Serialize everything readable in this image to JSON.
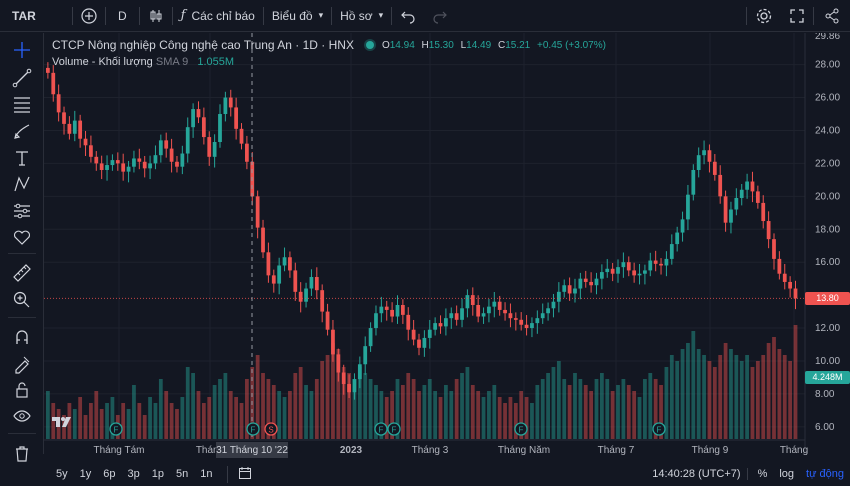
{
  "topbar": {
    "symbol": "TAR",
    "interval": "D",
    "indicators_label": "Các chỉ báo",
    "chart_type_label": "Biểu đồ",
    "profile_label": "Hồ sơ"
  },
  "legend": {
    "title": "CTCP Nông nghiệp Công nghệ cao Trung An · 1D · HNX",
    "o_label": "O",
    "o_value": "14.94",
    "h_label": "H",
    "h_value": "15.30",
    "l_label": "L",
    "l_value": "14.49",
    "c_label": "C",
    "c_value": "15.21",
    "change": "+0.45 (+3.07%)",
    "volume_label": "Volume - Khối lượng",
    "sma_label": "SMA 9",
    "volume_value": "1.055M"
  },
  "price_axis": {
    "ticks": [
      "28.00",
      "26.00",
      "24.00",
      "22.00",
      "20.00",
      "18.00",
      "16.00",
      "12.00",
      "10.00",
      "8.00",
      "6.00"
    ],
    "top_label": "29.86",
    "last_price": "13.80",
    "last_volume": "4.248M"
  },
  "time_axis": {
    "labels": [
      "Tháng Tám",
      "Tháng",
      "2023",
      "Tháng 3",
      "Tháng Năm",
      "Tháng 7",
      "Tháng 9",
      "Tháng"
    ],
    "crosshair_label": "31 Tháng 10 '22"
  },
  "bottombar": {
    "ranges": [
      "5y",
      "1y",
      "6p",
      "3p",
      "1p",
      "5n",
      "1n"
    ],
    "clock": "14:40:28 (UTC+7)",
    "percent": "%",
    "log": "log",
    "auto": "tự động"
  },
  "events": [
    "F",
    "F",
    "S",
    "F",
    "F",
    "F",
    "F"
  ],
  "colors": {
    "background": "#131722",
    "up": "#26a69a",
    "down": "#ef5350",
    "accent": "#2962ff"
  },
  "icons": {
    "leftbar": [
      "crosshair-icon",
      "trendline-icon",
      "fib-icon",
      "brush-icon",
      "text-icon",
      "pattern-icon",
      "forecast-icon",
      "heart-icon",
      "ruler-icon",
      "zoom-icon",
      "magnet-icon",
      "lock-draw-icon",
      "lock-icon",
      "eye-icon",
      "trash-icon"
    ]
  },
  "chart_data": {
    "type": "candlestick",
    "ylim": [
      5.2,
      29.86
    ],
    "last_close": 13.8,
    "closes": [
      27.5,
      26.2,
      25.1,
      24.4,
      23.8,
      24.6,
      23.5,
      23.1,
      22.4,
      22.0,
      21.6,
      21.9,
      22.2,
      22.0,
      21.5,
      21.8,
      22.3,
      22.1,
      21.7,
      22.0,
      22.5,
      23.4,
      22.9,
      22.1,
      21.8,
      22.6,
      24.2,
      25.3,
      24.8,
      23.6,
      22.4,
      23.3,
      25.0,
      26.0,
      25.4,
      24.1,
      23.2,
      22.1,
      20.0,
      18.1,
      16.6,
      15.2,
      14.7,
      15.8,
      16.3,
      15.5,
      14.2,
      13.6,
      14.4,
      15.1,
      14.3,
      13.0,
      11.9,
      10.4,
      9.3,
      8.6,
      8.1,
      8.9,
      9.8,
      10.9,
      12.0,
      12.9,
      13.3,
      13.1,
      12.7,
      13.4,
      12.8,
      11.9,
      11.3,
      10.8,
      11.4,
      11.9,
      12.3,
      12.1,
      12.6,
      12.9,
      12.5,
      13.2,
      14.0,
      13.4,
      12.7,
      12.9,
      13.3,
      13.6,
      13.1,
      12.9,
      12.6,
      12.5,
      12.2,
      12.0,
      12.3,
      12.6,
      12.9,
      13.2,
      13.6,
      14.2,
      14.6,
      14.1,
      14.4,
      15.0,
      14.8,
      14.6,
      15.0,
      15.4,
      15.6,
      15.3,
      15.7,
      16.0,
      15.5,
      15.2,
      15.3,
      15.5,
      16.1,
      15.9,
      15.8,
      16.2,
      17.1,
      17.8,
      18.6,
      20.1,
      21.6,
      22.5,
      22.8,
      22.1,
      21.3,
      20.0,
      18.4,
      19.2,
      19.9,
      20.4,
      20.9,
      20.3,
      19.6,
      18.5,
      17.4,
      16.2,
      15.3,
      14.8,
      14.4,
      13.8
    ],
    "volumes": [
      0.4,
      0.3,
      0.25,
      0.2,
      0.3,
      0.25,
      0.35,
      0.2,
      0.3,
      0.4,
      0.25,
      0.3,
      0.35,
      0.2,
      0.3,
      0.25,
      0.45,
      0.3,
      0.2,
      0.35,
      0.3,
      0.5,
      0.4,
      0.3,
      0.25,
      0.35,
      0.6,
      0.55,
      0.4,
      0.3,
      0.35,
      0.45,
      0.5,
      0.55,
      0.4,
      0.35,
      0.3,
      0.5,
      0.6,
      0.7,
      0.55,
      0.5,
      0.45,
      0.4,
      0.35,
      0.4,
      0.55,
      0.6,
      0.45,
      0.4,
      0.5,
      0.65,
      0.7,
      0.8,
      0.75,
      0.6,
      0.55,
      0.5,
      0.6,
      0.55,
      0.5,
      0.45,
      0.4,
      0.35,
      0.4,
      0.5,
      0.45,
      0.55,
      0.5,
      0.4,
      0.45,
      0.5,
      0.4,
      0.35,
      0.45,
      0.4,
      0.5,
      0.55,
      0.6,
      0.45,
      0.4,
      0.35,
      0.4,
      0.45,
      0.35,
      0.3,
      0.35,
      0.3,
      0.4,
      0.35,
      0.3,
      0.45,
      0.5,
      0.55,
      0.6,
      0.65,
      0.5,
      0.45,
      0.55,
      0.5,
      0.45,
      0.4,
      0.5,
      0.55,
      0.5,
      0.4,
      0.45,
      0.5,
      0.45,
      0.4,
      0.35,
      0.5,
      0.55,
      0.5,
      0.45,
      0.6,
      0.7,
      0.65,
      0.75,
      0.8,
      0.9,
      0.75,
      0.7,
      0.65,
      0.6,
      0.7,
      0.8,
      0.75,
      0.7,
      0.65,
      0.7,
      0.6,
      0.65,
      0.7,
      0.8,
      0.85,
      0.75,
      0.7,
      0.65,
      0.95
    ]
  }
}
